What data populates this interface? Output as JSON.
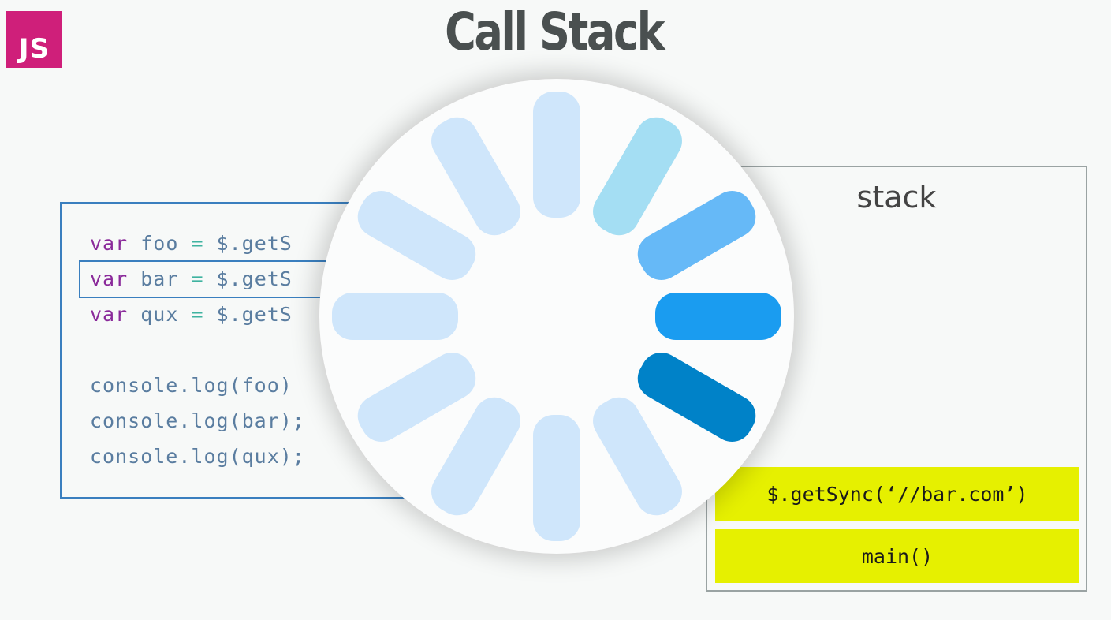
{
  "logo": {
    "text": "JS",
    "color": "#cf1f7a"
  },
  "title": "Call Stack",
  "code": {
    "lines": [
      [
        {
          "t": "var",
          "c": "kw"
        },
        {
          "t": " ",
          "c": "plain"
        },
        {
          "t": "foo",
          "c": "id"
        },
        {
          "t": " ",
          "c": "plain"
        },
        {
          "t": "=",
          "c": "op"
        },
        {
          "t": " $.getS",
          "c": "fn"
        }
      ],
      [
        {
          "t": "var",
          "c": "kw"
        },
        {
          "t": " ",
          "c": "plain"
        },
        {
          "t": "bar",
          "c": "id"
        },
        {
          "t": " ",
          "c": "plain"
        },
        {
          "t": "=",
          "c": "op"
        },
        {
          "t": " $.getS",
          "c": "fn"
        }
      ],
      [
        {
          "t": "var",
          "c": "kw"
        },
        {
          "t": " ",
          "c": "plain"
        },
        {
          "t": "qux",
          "c": "id"
        },
        {
          "t": " ",
          "c": "plain"
        },
        {
          "t": "=",
          "c": "op"
        },
        {
          "t": " $.getS",
          "c": "fn"
        }
      ],
      [],
      [
        {
          "t": "console.log(foo)",
          "c": "fn"
        }
      ],
      [
        {
          "t": "console.log(bar);",
          "c": "fn"
        }
      ],
      [
        {
          "t": "console.log(qux);",
          "c": "fn"
        }
      ]
    ],
    "highlighted_line": 1
  },
  "stack": {
    "label": "stack",
    "frames": [
      "$.getSync(‘//bar.com’)",
      "main()"
    ],
    "frame_color": "#e6f000"
  },
  "spinner": {
    "icon": "loading-spinner-icon",
    "spoke_colors": [
      "#cfe6fb",
      "#a4def3",
      "#66b9f7",
      "#1a9cf0",
      "#0082c8",
      "#cfe6fb",
      "#cfe6fb",
      "#cfe6fb",
      "#cfe6fb",
      "#cfe6fb",
      "#cfe6fb",
      "#cfe6fb"
    ]
  }
}
